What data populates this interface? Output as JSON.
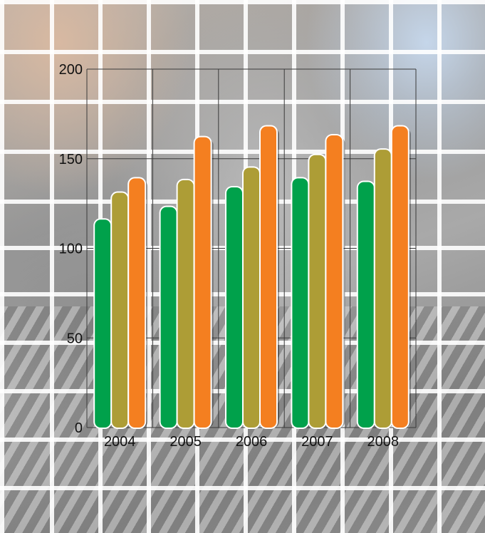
{
  "chart_data": {
    "type": "bar",
    "title": "",
    "xlabel": "",
    "ylabel": "",
    "categories": [
      "2004",
      "2005",
      "2006",
      "2007",
      "2008"
    ],
    "series": [
      {
        "values": [
          116,
          123,
          134,
          139,
          137
        ],
        "color": "#00a14b"
      },
      {
        "values": [
          131,
          138,
          145,
          152,
          155
        ],
        "color": "#ad9d36"
      },
      {
        "values": [
          139,
          162,
          168,
          163,
          168
        ],
        "color": "#f47f20"
      }
    ],
    "ylim": [
      0,
      200
    ],
    "yticks": [
      "0",
      "50",
      "100",
      "150",
      "200"
    ],
    "grid": true,
    "legend": "none"
  }
}
